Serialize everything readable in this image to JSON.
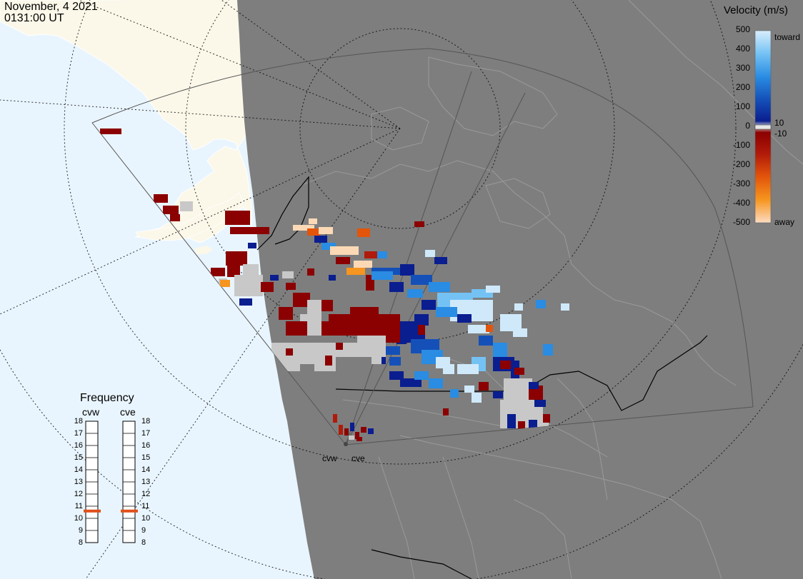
{
  "header": {
    "date": "November, 4 2021",
    "time": "0131:00 UT"
  },
  "colorbar": {
    "title": "Velocity (m/s)",
    "ticks": [
      "500",
      "400",
      "300",
      "200",
      "100",
      "0",
      "-100",
      "-200",
      "-300",
      "-400",
      "-500"
    ],
    "upper_label": "toward",
    "lower_label": "away",
    "small_pos": "10",
    "small_neg": "-10",
    "colors": {
      "toward_light": "#cfe9fb",
      "toward_mid": "#2f8ee0",
      "toward_dark": "#0a1e8f",
      "away_dark": "#8b0000",
      "away_mid": "#e2550b",
      "away_light": "#fcd9b6",
      "ground_scatter": "#c8c8c8"
    }
  },
  "frequency_panel": {
    "title": "Frequency",
    "radars": [
      {
        "code": "cvw",
        "frequency_mhz": 10.6
      },
      {
        "code": "cve",
        "frequency_mhz": 10.6
      }
    ],
    "scale": [
      "18",
      "17",
      "16",
      "15",
      "14",
      "13",
      "12",
      "11",
      "10",
      "9",
      "8"
    ],
    "marker_color": "#e0501a"
  },
  "radar_sites": [
    {
      "code": "cvw"
    },
    {
      "code": "cve"
    }
  ],
  "map_colors": {
    "ocean": "#e9f5fe",
    "land_day": "#fbf8e9",
    "land_night": "#7e7e7e",
    "fov_outline": "#555555",
    "grid": "#000000"
  }
}
